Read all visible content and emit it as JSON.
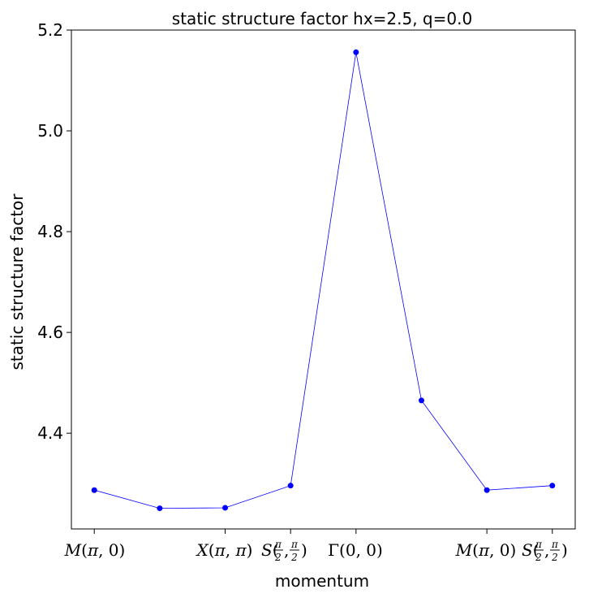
{
  "chart_data": {
    "type": "line",
    "title": "static structure factor hx=2.5, q=0.0",
    "xlabel": "momentum",
    "ylabel": "static structure factor",
    "x": [
      0,
      1,
      2,
      3,
      4,
      5,
      6,
      7
    ],
    "values": [
      4.287,
      4.251,
      4.252,
      4.296,
      5.156,
      4.465,
      4.287,
      4.296
    ],
    "ylim": [
      4.21,
      5.2
    ],
    "xlim": [
      -0.35,
      7.35
    ],
    "yticks": [
      "4.4",
      "4.6",
      "4.8",
      "5.0",
      "5.2"
    ],
    "xtick_positions": [
      0,
      2,
      3,
      4,
      6,
      7
    ],
    "xticks": [
      "M(π,0)",
      "X(π,π)",
      "S(π/2,π/2)",
      "Γ(0,0)",
      "M(π,0)",
      "S(π/2,π/2)"
    ],
    "line_color": "#0000ff",
    "marker_color": "#0000ff",
    "grid": false
  }
}
